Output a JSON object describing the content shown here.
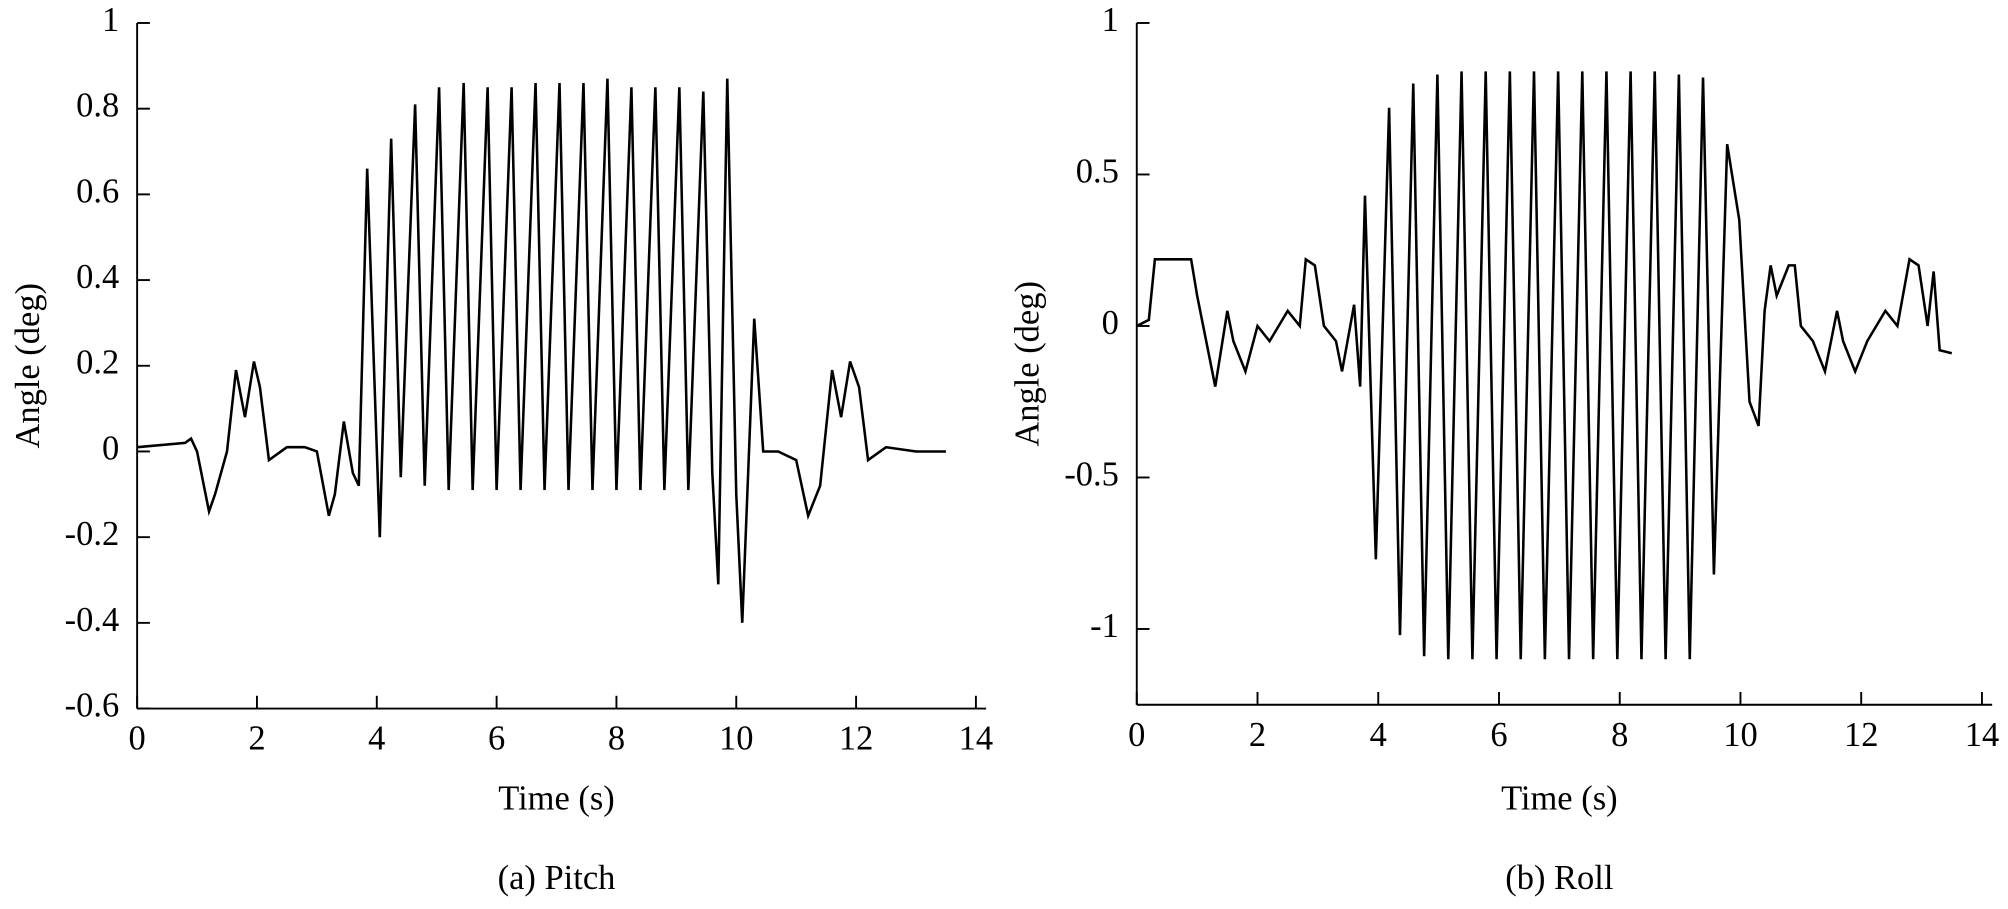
{
  "chart_data": [
    {
      "type": "line",
      "caption": "(a) Pitch",
      "xlabel": "Time (s)",
      "ylabel": "Angle (deg)",
      "color": "#000000",
      "xlim": [
        0,
        14
      ],
      "xticks": [
        0,
        2,
        4,
        6,
        8,
        10,
        12,
        14
      ],
      "ylim": [
        -0.6,
        1
      ],
      "yticks": [
        -0.6,
        -0.4,
        -0.2,
        0,
        0.2,
        0.4,
        0.6,
        0.8,
        1
      ],
      "x": [
        0,
        0.8,
        0.9,
        1.0,
        1.2,
        1.3,
        1.5,
        1.65,
        1.8,
        1.95,
        2.05,
        2.2,
        2.5,
        2.8,
        3.0,
        3.2,
        3.3,
        3.45,
        3.6,
        3.7,
        3.84,
        4.05,
        4.24,
        4.4,
        4.64,
        4.8,
        5.04,
        5.2,
        5.45,
        5.6,
        5.85,
        6.0,
        6.25,
        6.4,
        6.65,
        6.8,
        7.05,
        7.2,
        7.45,
        7.6,
        7.85,
        8.0,
        8.25,
        8.4,
        8.65,
        8.8,
        9.05,
        9.2,
        9.45,
        9.6,
        9.7,
        9.85,
        10.0,
        10.1,
        10.3,
        10.45,
        10.7,
        11.0,
        11.2,
        11.4,
        11.6,
        11.75,
        11.9,
        12.05,
        12.2,
        12.5,
        13.0,
        13.5
      ],
      "values": [
        0.01,
        0.02,
        0.03,
        0,
        -0.14,
        -0.1,
        0,
        0.19,
        0.08,
        0.21,
        0.15,
        -0.02,
        0.01,
        0.01,
        0,
        -0.15,
        -0.1,
        0.07,
        -0.05,
        -0.08,
        0.66,
        -0.2,
        0.73,
        -0.06,
        0.81,
        -0.08,
        0.85,
        -0.09,
        0.86,
        -0.09,
        0.85,
        -0.09,
        0.85,
        -0.09,
        0.86,
        -0.09,
        0.86,
        -0.09,
        0.86,
        -0.09,
        0.87,
        -0.09,
        0.85,
        -0.09,
        0.85,
        -0.09,
        0.85,
        -0.09,
        0.84,
        -0.05,
        -0.31,
        0.87,
        -0.1,
        -0.4,
        0.31,
        0,
        0,
        -0.02,
        -0.15,
        -0.08,
        0.19,
        0.08,
        0.21,
        0.15,
        -0.02,
        0.01,
        0,
        0
      ]
    },
    {
      "type": "line",
      "caption": "(b) Roll",
      "xlabel": "Time (s)",
      "ylabel": "Angle (deg)",
      "color": "#000000",
      "xlim": [
        0,
        14
      ],
      "xticks": [
        0,
        2,
        4,
        6,
        8,
        10,
        12,
        14
      ],
      "ylim": [
        -1.25,
        1
      ],
      "yticks": [
        -1,
        -0.5,
        0,
        0.5,
        1
      ],
      "x": [
        0,
        0.2,
        0.3,
        0.9,
        1.0,
        1.2,
        1.3,
        1.5,
        1.6,
        1.8,
        2.0,
        2.2,
        2.5,
        2.7,
        2.8,
        2.95,
        3.1,
        3.3,
        3.4,
        3.6,
        3.7,
        3.78,
        3.96,
        4.18,
        4.36,
        4.58,
        4.76,
        4.98,
        5.16,
        5.38,
        5.56,
        5.78,
        5.96,
        6.18,
        6.36,
        6.58,
        6.76,
        6.98,
        7.16,
        7.38,
        7.56,
        7.78,
        7.96,
        8.18,
        8.36,
        8.58,
        8.76,
        8.98,
        9.16,
        9.38,
        9.56,
        9.78,
        9.98,
        10.15,
        10.3,
        10.4,
        10.5,
        10.6,
        10.8,
        10.9,
        11.0,
        11.2,
        11.4,
        11.6,
        11.7,
        11.9,
        12.1,
        12.4,
        12.6,
        12.8,
        12.95,
        13.1,
        13.2,
        13.3,
        13.5
      ],
      "values": [
        0,
        0.02,
        0.22,
        0.22,
        0.1,
        -0.1,
        -0.2,
        0.05,
        -0.05,
        -0.15,
        0,
        -0.05,
        0.05,
        0,
        0.22,
        0.2,
        0,
        -0.05,
        -0.15,
        0.07,
        -0.2,
        0.43,
        -0.77,
        0.72,
        -1.02,
        0.8,
        -1.09,
        0.83,
        -1.1,
        0.84,
        -1.1,
        0.84,
        -1.1,
        0.84,
        -1.1,
        0.84,
        -1.1,
        0.84,
        -1.1,
        0.84,
        -1.1,
        0.84,
        -1.1,
        0.84,
        -1.1,
        0.84,
        -1.1,
        0.83,
        -1.1,
        0.82,
        -0.82,
        0.6,
        0.35,
        -0.25,
        -0.33,
        0.05,
        0.2,
        0.1,
        0.2,
        0.2,
        0,
        -0.05,
        -0.15,
        0.05,
        -0.05,
        -0.15,
        -0.05,
        0.05,
        0,
        0.22,
        0.2,
        0,
        0.18,
        -0.08,
        -0.09
      ]
    }
  ]
}
